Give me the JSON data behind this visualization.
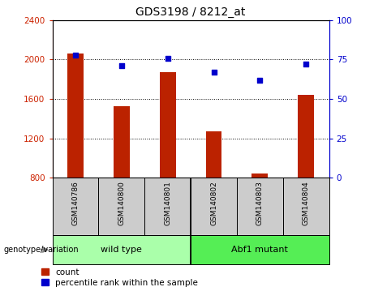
{
  "title": "GDS3198 / 8212_at",
  "samples": [
    "GSM140786",
    "GSM140800",
    "GSM140801",
    "GSM140802",
    "GSM140803",
    "GSM140804"
  ],
  "counts": [
    2060,
    1530,
    1870,
    1270,
    845,
    1640
  ],
  "percentile_ranks": [
    78,
    71,
    76,
    67,
    62,
    72
  ],
  "ylim_left": [
    800,
    2400
  ],
  "ylim_right": [
    0,
    100
  ],
  "yticks_left": [
    800,
    1200,
    1600,
    2000,
    2400
  ],
  "yticks_right": [
    0,
    25,
    50,
    75,
    100
  ],
  "bar_color": "#bb2200",
  "dot_color": "#0000cc",
  "groups": [
    {
      "label": "wild type",
      "start": 0,
      "end": 2,
      "color": "#aaffaa"
    },
    {
      "label": "Abf1 mutant",
      "start": 3,
      "end": 5,
      "color": "#55ee55"
    }
  ],
  "group_label": "genotype/variation",
  "legend_count_label": "count",
  "legend_percentile_label": "percentile rank within the sample",
  "tick_color_left": "#cc2200",
  "tick_color_right": "#0000cc",
  "bg_color": "#cccccc",
  "plot_bg": "#ffffff",
  "bar_width": 0.35
}
